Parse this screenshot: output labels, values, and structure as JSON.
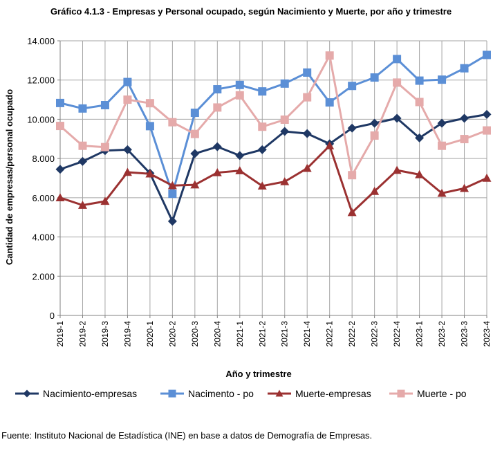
{
  "chart_data": {
    "type": "line",
    "title": "Gráfico 4.1.3 - Empresas y Personal ocupado, según Nacimiento y Muerte, por año y trimestre",
    "xlabel": "Año  y  trimestre",
    "ylabel": "Cantidad de empresas/personal ocupado",
    "ylim": [
      0,
      14000
    ],
    "ytick_values": [
      0,
      2000,
      4000,
      6000,
      8000,
      10000,
      12000,
      14000
    ],
    "ytick_labels": [
      "0",
      "2.000",
      "4.000",
      "6.000",
      "8.000",
      "10.000",
      "12.000",
      "14.000"
    ],
    "grid": true,
    "legend_position": "bottom",
    "categories": [
      "2019-1",
      "2019-2",
      "2019-3",
      "2019-4",
      "2020-1",
      "2020-2",
      "2020-3",
      "2020-4",
      "2021-1",
      "2021-2",
      "2021-3",
      "2021-4",
      "2022-1",
      "2022-2",
      "2022-3",
      "2022-4",
      "2023-1",
      "2023-2",
      "2023-3",
      "2023-4"
    ],
    "series": [
      {
        "name": "Nacimiento-empresas",
        "color": "#1f3864",
        "marker": "diamond",
        "values": [
          7450,
          7850,
          8400,
          8450,
          7250,
          4800,
          8250,
          8600,
          8150,
          8450,
          9380,
          9270,
          8750,
          9550,
          9800,
          10050,
          9050,
          9800,
          10050,
          10250
        ]
      },
      {
        "name": "Nacimento - po",
        "color": "#5b8fd6",
        "marker": "square",
        "values": [
          10830,
          10550,
          10720,
          11900,
          9650,
          6200,
          10330,
          11530,
          11750,
          11420,
          11820,
          12380,
          10860,
          11700,
          12130,
          13070,
          11970,
          12020,
          12600,
          13280
        ]
      },
      {
        "name": "Muerte-empresas",
        "color": "#9b3131",
        "marker": "triangle",
        "values": [
          6000,
          5620,
          5820,
          7300,
          7220,
          6620,
          6660,
          7280,
          7380,
          6600,
          6820,
          7500,
          8650,
          5250,
          6330,
          7400,
          7180,
          6230,
          6480,
          7000
        ]
      },
      {
        "name": "Muerte  - po",
        "color": "#e5aaaa",
        "marker": "square",
        "values": [
          9660,
          8650,
          8580,
          11000,
          10820,
          9850,
          9250,
          10600,
          11220,
          9620,
          9980,
          11120,
          13250,
          7150,
          9170,
          11870,
          10880,
          8650,
          8990,
          9430
        ]
      }
    ]
  },
  "footer": {
    "source": "Fuente: Instituto Nacional de Estadística (INE) en base a datos de Demografía de Empresas."
  }
}
